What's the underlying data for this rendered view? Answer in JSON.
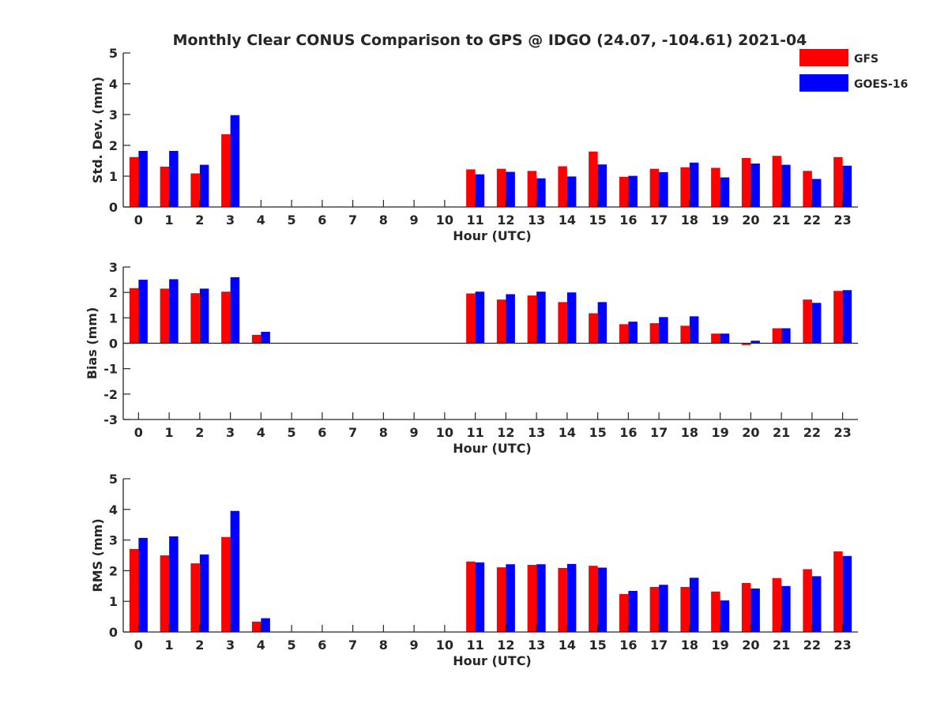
{
  "title": "Monthly Clear CONUS Comparison to GPS @ IDGO (24.07, -104.61) 2021-04",
  "legend": {
    "placement": "top-right",
    "entries": [
      {
        "name": "GFS",
        "color": "#ff0000"
      },
      {
        "name": "GOES-16",
        "color": "#0000ff"
      }
    ]
  },
  "chart_data": [
    {
      "type": "bar",
      "xlabel": "Hour (UTC)",
      "ylabel": "Std. Dev. (mm)",
      "ylim": [
        0,
        5
      ],
      "yticks": [
        "0",
        "1",
        "2",
        "3",
        "4",
        "5"
      ],
      "grid": false,
      "categories": [
        "0",
        "1",
        "2",
        "3",
        "4",
        "5",
        "6",
        "7",
        "8",
        "9",
        "10",
        "11",
        "12",
        "13",
        "14",
        "15",
        "16",
        "17",
        "18",
        "19",
        "20",
        "21",
        "22",
        "23"
      ],
      "series": [
        {
          "name": "GFS",
          "color": "#ff0000",
          "values": [
            1.62,
            1.31,
            1.09,
            2.36,
            0,
            0,
            0,
            0,
            0,
            0,
            0,
            1.22,
            1.24,
            1.17,
            1.32,
            1.8,
            0.98,
            1.24,
            1.29,
            1.27,
            1.59,
            1.66,
            1.17,
            1.62
          ]
        },
        {
          "name": "GOES-16",
          "color": "#0000ff",
          "values": [
            1.82,
            1.82,
            1.37,
            2.98,
            0,
            0,
            0,
            0,
            0,
            0,
            0,
            1.06,
            1.14,
            0.93,
            0.99,
            1.38,
            1.01,
            1.13,
            1.44,
            0.96,
            1.41,
            1.37,
            0.91,
            1.34
          ]
        }
      ]
    },
    {
      "type": "bar",
      "xlabel": "Hour (UTC)",
      "ylabel": "Bias (mm)",
      "ylim": [
        -3,
        3
      ],
      "yticks": [
        "-3",
        "-2",
        "-1",
        "0",
        "1",
        "2",
        "3"
      ],
      "grid": false,
      "categories": [
        "0",
        "1",
        "2",
        "3",
        "4",
        "5",
        "6",
        "7",
        "8",
        "9",
        "10",
        "11",
        "12",
        "13",
        "14",
        "15",
        "16",
        "17",
        "18",
        "19",
        "20",
        "21",
        "22",
        "23"
      ],
      "series": [
        {
          "name": "GFS",
          "color": "#ff0000",
          "values": [
            2.17,
            2.15,
            1.97,
            2.03,
            0.33,
            0,
            0,
            0,
            0,
            0,
            0,
            1.96,
            1.72,
            1.88,
            1.62,
            1.18,
            0.75,
            0.79,
            0.69,
            0.38,
            -0.07,
            0.59,
            1.72,
            2.06
          ]
        },
        {
          "name": "GOES-16",
          "color": "#0000ff",
          "values": [
            2.5,
            2.52,
            2.15,
            2.6,
            0.45,
            0,
            0,
            0,
            0,
            0,
            0,
            2.03,
            1.93,
            2.03,
            2.0,
            1.62,
            0.85,
            1.03,
            1.06,
            0.38,
            0.1,
            0.59,
            1.59,
            2.09
          ]
        }
      ]
    },
    {
      "type": "bar",
      "xlabel": "Hour (UTC)",
      "ylabel": "RMS (mm)",
      "ylim": [
        0,
        5
      ],
      "yticks": [
        "0",
        "1",
        "2",
        "3",
        "4",
        "5"
      ],
      "grid": false,
      "categories": [
        "0",
        "1",
        "2",
        "3",
        "4",
        "5",
        "6",
        "7",
        "8",
        "9",
        "10",
        "11",
        "12",
        "13",
        "14",
        "15",
        "16",
        "17",
        "18",
        "19",
        "20",
        "21",
        "22",
        "23"
      ],
      "series": [
        {
          "name": "GFS",
          "color": "#ff0000",
          "values": [
            2.71,
            2.5,
            2.24,
            3.1,
            0.34,
            0,
            0,
            0,
            0,
            0,
            0,
            2.3,
            2.11,
            2.19,
            2.09,
            2.16,
            1.24,
            1.47,
            1.47,
            1.32,
            1.6,
            1.76,
            2.05,
            2.63
          ]
        },
        {
          "name": "GOES-16",
          "color": "#0000ff",
          "values": [
            3.07,
            3.12,
            2.53,
            3.95,
            0.45,
            0,
            0,
            0,
            0,
            0,
            0,
            2.27,
            2.21,
            2.21,
            2.22,
            2.1,
            1.34,
            1.54,
            1.77,
            1.03,
            1.42,
            1.5,
            1.82,
            2.48
          ]
        }
      ]
    }
  ]
}
